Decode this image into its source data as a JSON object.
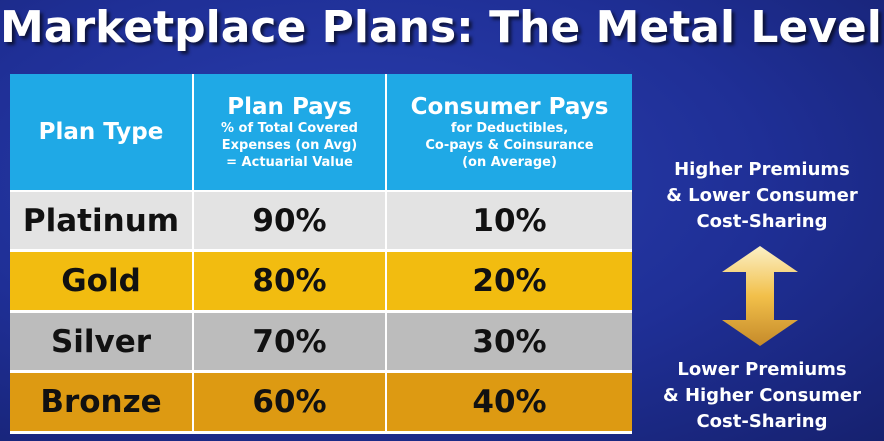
{
  "title": "Marketplace Plans: The Metal Levels",
  "table": {
    "headers": {
      "plan_type": "Plan Type",
      "plan_pays": "Plan Pays",
      "plan_pays_sub": [
        "% of Total Covered",
        "Expenses (on Avg)",
        "= Actuarial Value"
      ],
      "consumer_pays": "Consumer Pays",
      "consumer_pays_sub": [
        "for Deductibles,",
        "Co-pays & Coinsurance",
        "(on Average)"
      ]
    },
    "rows": [
      {
        "plan": "Platinum",
        "plan_pays": "90%",
        "consumer_pays": "10%",
        "color": "#e3e3e3"
      },
      {
        "plan": "Gold",
        "plan_pays": "80%",
        "consumer_pays": "20%",
        "color": "#f2bc10"
      },
      {
        "plan": "Silver",
        "plan_pays": "70%",
        "consumer_pays": "30%",
        "color": "#bcbcbc"
      },
      {
        "plan": "Bronze",
        "plan_pays": "60%",
        "consumer_pays": "40%",
        "color": "#dd9a12"
      }
    ]
  },
  "side": {
    "top_lines": [
      "Higher Premiums",
      "& Lower Consumer",
      "Cost-Sharing"
    ],
    "bottom_lines": [
      "Lower Premiums",
      "& Higher Consumer",
      "Cost-Sharing"
    ],
    "arrow_icon": "double-arrow-vertical-icon"
  },
  "colors": {
    "background": "#1f2f96",
    "header": "#1fa9e6"
  }
}
